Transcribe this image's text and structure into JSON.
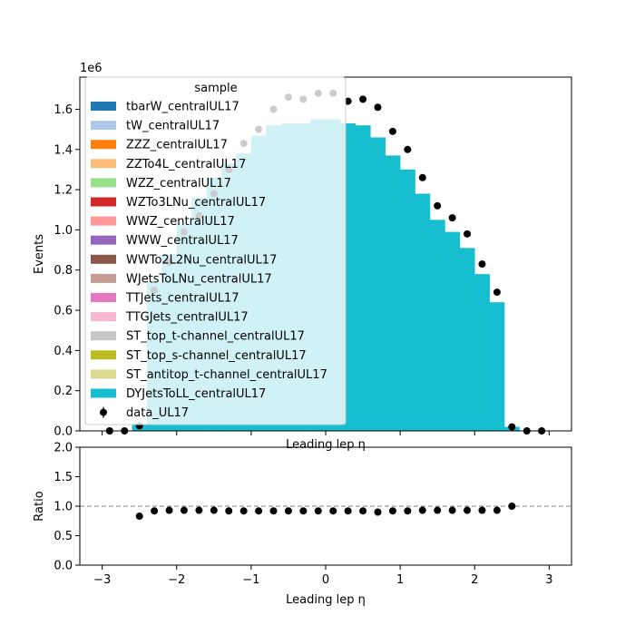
{
  "chart_data": [
    {
      "type": "bar",
      "panel": "main",
      "stacked": true,
      "xlabel": "Leading lep η",
      "ylabel": "Events",
      "y_multiplier_label": "1e6",
      "xlim": [
        -3.3,
        3.3
      ],
      "ylim": [
        0,
        1.76
      ],
      "y_unit": "1e6 events",
      "xticks": [
        -3,
        -2,
        -1,
        0,
        1,
        2,
        3
      ],
      "yticks": [
        0.0,
        0.2,
        0.4,
        0.6,
        0.8,
        1.0,
        1.2,
        1.4,
        1.6
      ],
      "bin_edges": [
        -2.6,
        -2.4,
        -2.2,
        -2.0,
        -1.8,
        -1.6,
        -1.4,
        -1.2,
        -1.0,
        -0.8,
        -0.6,
        -0.4,
        -0.2,
        0.0,
        0.2,
        0.4,
        0.6,
        0.8,
        1.0,
        1.2,
        1.4,
        1.6,
        1.8,
        2.0,
        2.2,
        2.4,
        2.6
      ],
      "mc_total": [
        0.03,
        0.74,
        0.88,
        1.03,
        1.16,
        1.26,
        1.33,
        1.38,
        1.47,
        1.52,
        1.53,
        1.53,
        1.55,
        1.55,
        1.53,
        1.52,
        1.46,
        1.37,
        1.3,
        1.18,
        1.05,
        0.99,
        0.91,
        0.78,
        0.64,
        0.02
      ],
      "legend": {
        "title": "sample",
        "placement": "upper-left",
        "entries": [
          {
            "label": "tbarW_centralUL17",
            "color": "#1f77b4"
          },
          {
            "label": "tW_centralUL17",
            "color": "#aec7e8"
          },
          {
            "label": "ZZZ_centralUL17",
            "color": "#ff7f0e"
          },
          {
            "label": "ZZTo4L_centralUL17",
            "color": "#ffbb78"
          },
          {
            "label": "WZZ_centralUL17",
            "color": "#98df8a"
          },
          {
            "label": "WZTo3LNu_centralUL17",
            "color": "#d62728"
          },
          {
            "label": "WWZ_centralUL17",
            "color": "#ff9896"
          },
          {
            "label": "WWW_centralUL17",
            "color": "#9467bd"
          },
          {
            "label": "WWTo2L2Nu_centralUL17",
            "color": "#8c564b"
          },
          {
            "label": "WJetsToLNu_centralUL17",
            "color": "#c49c94"
          },
          {
            "label": "TTJets_centralUL17",
            "color": "#e377c2"
          },
          {
            "label": "TTGJets_centralUL17",
            "color": "#f7b6d2"
          },
          {
            "label": "ST_top_t-channel_centralUL17",
            "color": "#c7c7c7"
          },
          {
            "label": "ST_top_s-channel_centralUL17",
            "color": "#bcbd22"
          },
          {
            "label": "ST_antitop_t-channel_centralUL17",
            "color": "#dbdb8d"
          },
          {
            "label": "DYJetsToLL_centralUL17",
            "color": "#17becf"
          },
          {
            "label": "data_UL17",
            "color": "#000000",
            "marker": "errorbar"
          }
        ]
      },
      "data_points": {
        "name": "data_UL17",
        "x": [
          -2.9,
          -2.7,
          -2.5,
          -2.3,
          -2.1,
          -1.9,
          -1.7,
          -1.5,
          -1.3,
          -1.1,
          -0.9,
          -0.7,
          -0.5,
          -0.3,
          -0.1,
          0.1,
          0.3,
          0.5,
          0.7,
          0.9,
          1.1,
          1.3,
          1.5,
          1.7,
          1.9,
          2.1,
          2.3,
          2.5,
          2.7,
          2.9
        ],
        "y": [
          0.0,
          0.0,
          0.025,
          0.7,
          0.84,
          0.99,
          1.07,
          1.18,
          1.3,
          1.43,
          1.5,
          1.6,
          1.66,
          1.65,
          1.68,
          1.68,
          1.64,
          1.65,
          1.61,
          1.49,
          1.4,
          1.26,
          1.12,
          1.06,
          0.98,
          0.83,
          0.69,
          0.02,
          0.0,
          0.0
        ]
      }
    },
    {
      "type": "scatter",
      "panel": "ratio",
      "xlabel": "Leading lep η",
      "ylabel": "Ratio",
      "xlim": [
        -3.3,
        3.3
      ],
      "ylim": [
        0,
        2.0
      ],
      "xticks": [
        -3,
        -2,
        -1,
        0,
        1,
        2,
        3
      ],
      "yticks": [
        0.0,
        0.5,
        1.0,
        1.5,
        2.0
      ],
      "reference_line": 1.0,
      "x": [
        -2.5,
        -2.3,
        -2.1,
        -1.9,
        -1.7,
        -1.5,
        -1.3,
        -1.1,
        -0.9,
        -0.7,
        -0.5,
        -0.3,
        -0.1,
        0.1,
        0.3,
        0.5,
        0.7,
        0.9,
        1.1,
        1.3,
        1.5,
        1.7,
        1.9,
        2.1,
        2.3,
        2.5
      ],
      "y": [
        0.83,
        0.92,
        0.93,
        0.93,
        0.93,
        0.93,
        0.92,
        0.92,
        0.92,
        0.92,
        0.92,
        0.92,
        0.92,
        0.92,
        0.92,
        0.92,
        0.9,
        0.92,
        0.92,
        0.93,
        0.93,
        0.93,
        0.93,
        0.93,
        0.93,
        1.0
      ]
    }
  ]
}
